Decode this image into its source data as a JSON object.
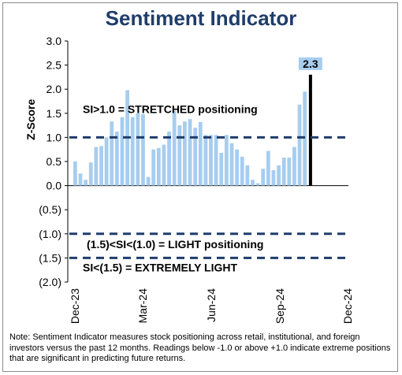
{
  "chart_data": {
    "type": "bar",
    "title": "Sentiment Indicator",
    "ylabel": "Z-Score",
    "ylim": [
      -2.0,
      3.0
    ],
    "yticks": [
      3.0,
      2.5,
      2.0,
      1.5,
      1.0,
      0.5,
      0.0,
      -0.5,
      -1.0,
      -1.5,
      -2.0
    ],
    "ytick_labels": [
      "3.0",
      "2.5",
      "2.0",
      "1.5",
      "1.0",
      "0.5",
      "0.0",
      "(0.5)",
      "(1.0)",
      "(1.5)",
      "(2.0)"
    ],
    "xtick_labels": [
      "Dec-23",
      "Mar-24",
      "Jun-24",
      "Sep-24",
      "Dec-24"
    ],
    "series": [
      {
        "values": [
          0.5,
          0.25,
          0.12,
          0.48,
          0.8,
          0.82,
          1.0,
          1.33,
          1.12,
          1.42,
          1.98,
          1.42,
          1.5,
          1.48,
          0.18,
          0.75,
          0.78,
          0.85,
          1.12,
          1.55,
          1.25,
          1.33,
          1.38,
          1.2,
          1.32,
          1.05,
          1.05,
          1.05,
          0.68,
          1.05,
          0.88,
          0.75,
          0.6,
          0.42,
          0.12,
          0.05,
          0.35,
          0.72,
          0.32,
          0.42,
          0.58,
          0.58,
          0.8,
          1.68,
          1.95
        ]
      }
    ],
    "latest_value": 2.3,
    "latest_label": "2.3",
    "reference_lines": [
      {
        "y": 1.0,
        "label": "SI>1.0 = STRETCHED positioning"
      },
      {
        "y": -1.0,
        "label": "(1.5)<SI<(1.0) = LIGHT positioning"
      },
      {
        "y": -1.5,
        "label": "SI<(1.5) = EXTREMELY LIGHT"
      }
    ],
    "colors": {
      "bars": "#a7cdef",
      "latest_bar": "#000000",
      "reference_line": "#1f3d6b",
      "title": "#1f3d6b",
      "label_box": "#a7cdef"
    }
  },
  "footnote": "Note: Sentiment Indicator measures stock positioning across retail, institutional, and foreign investors versus the past 12 months. Readings below -1.0 or above +1.0 indicate extreme positions that are significant in predicting future returns."
}
